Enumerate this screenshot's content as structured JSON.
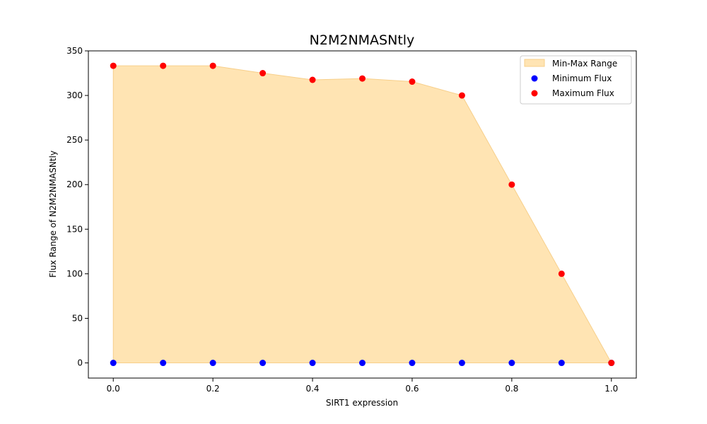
{
  "chart_data": {
    "type": "scatter",
    "title": "N2M2NMASNtly",
    "xlabel": "SIRT1 expression",
    "ylabel": "Flux Range of N2M2NMASNtly",
    "xlim": [
      -0.05,
      1.05
    ],
    "ylim": [
      -17,
      350
    ],
    "xticks": [
      "0.0",
      "0.2",
      "0.4",
      "0.6",
      "0.8",
      "1.0"
    ],
    "yticks": [
      "0",
      "50",
      "100",
      "150",
      "200",
      "250",
      "300",
      "350"
    ],
    "x": [
      0.0,
      0.1,
      0.2,
      0.3,
      0.4,
      0.5,
      0.6,
      0.7,
      0.8,
      0.9,
      1.0
    ],
    "series": [
      {
        "name": "Minimum Flux",
        "color": "#0000ff",
        "values": [
          0,
          0,
          0,
          0,
          0,
          0,
          0,
          0,
          0,
          0,
          0
        ]
      },
      {
        "name": "Maximum Flux",
        "color": "#ff0000",
        "values": [
          333.3,
          333.3,
          333.3,
          325,
          317.5,
          319,
          315.5,
          300,
          200,
          100,
          0
        ]
      }
    ],
    "fill": {
      "name": "Min-Max Range",
      "color": "#ffe4b3",
      "edge": "#f7cf8a"
    },
    "grid": false,
    "legend_position": "top-right"
  }
}
